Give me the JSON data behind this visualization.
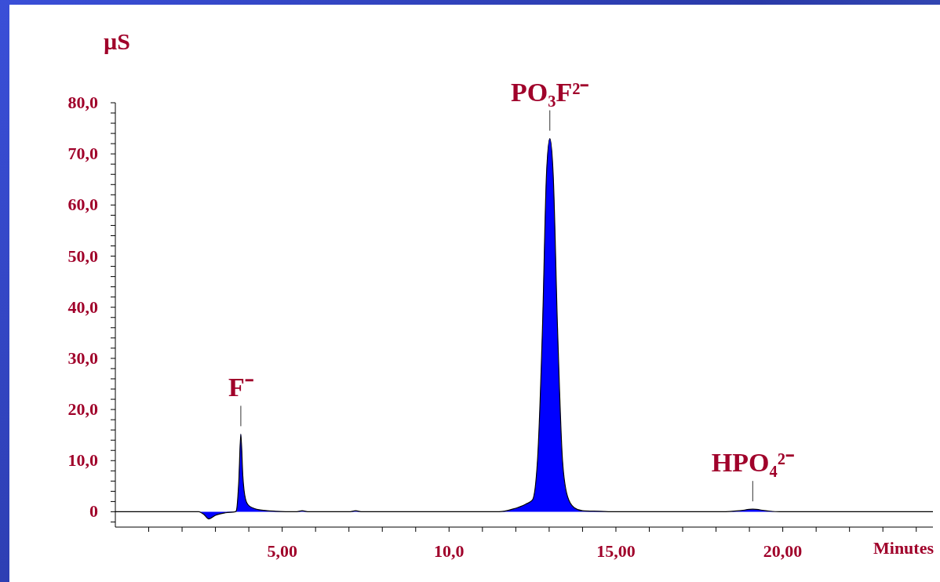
{
  "chart_data": {
    "type": "area",
    "xlabel": "Minutes",
    "ylabel": "µS",
    "x": [
      0,
      2.5,
      2.65,
      2.8,
      3.0,
      3.3,
      3.6,
      3.63,
      3.7,
      3.76,
      3.82,
      3.9,
      4.0,
      4.3,
      4.8,
      5.4,
      5.6,
      5.8,
      7.0,
      7.2,
      7.4,
      11.5,
      11.9,
      12.3,
      12.5,
      12.65,
      12.8,
      12.92,
      13.02,
      13.12,
      13.25,
      13.4,
      13.55,
      13.75,
      14.0,
      14.5,
      15.0,
      18.2,
      18.7,
      19.1,
      19.5,
      19.9,
      24.5
    ],
    "series": [
      {
        "color": "#0000ff",
        "values": [
          0,
          0,
          -0.5,
          -1.4,
          -0.7,
          -0.2,
          0,
          0.3,
          6,
          15.2,
          7,
          2.5,
          1.2,
          0.4,
          0.1,
          0,
          0.2,
          0,
          0,
          0.2,
          0,
          0,
          0.5,
          1.5,
          2.3,
          10,
          36,
          66,
          73,
          66,
          36,
          10,
          3,
          0.8,
          0.2,
          0.1,
          0,
          0,
          0.2,
          0.5,
          0.2,
          0,
          0
        ]
      }
    ],
    "xlim": [
      0,
      24.5
    ],
    "ylim": [
      -3,
      80
    ],
    "xticks": [
      {
        "value": 1,
        "label": null
      },
      {
        "value": 2,
        "label": null
      },
      {
        "value": 3,
        "label": null
      },
      {
        "value": 4,
        "label": null
      },
      {
        "value": 5,
        "label": "5,00"
      },
      {
        "value": 6,
        "label": null
      },
      {
        "value": 7,
        "label": null
      },
      {
        "value": 8,
        "label": null
      },
      {
        "value": 9,
        "label": null
      },
      {
        "value": 10,
        "label": "10,0"
      },
      {
        "value": 11,
        "label": null
      },
      {
        "value": 12,
        "label": null
      },
      {
        "value": 13,
        "label": null
      },
      {
        "value": 14,
        "label": null
      },
      {
        "value": 15,
        "label": "15,00"
      },
      {
        "value": 16,
        "label": null
      },
      {
        "value": 17,
        "label": null
      },
      {
        "value": 18,
        "label": null
      },
      {
        "value": 19,
        "label": null
      },
      {
        "value": 20,
        "label": "20,00"
      },
      {
        "value": 21,
        "label": null
      },
      {
        "value": 22,
        "label": null
      },
      {
        "value": 23,
        "label": null
      },
      {
        "value": 24,
        "label": null
      }
    ],
    "yticks": [
      {
        "value": -2,
        "label": null
      },
      0,
      {
        "value": 2,
        "label": null
      },
      {
        "value": 4,
        "label": null
      },
      {
        "value": 6,
        "label": null
      },
      {
        "value": 8,
        "label": null
      },
      {
        "value": 10,
        "label": "10,0"
      },
      {
        "value": 12,
        "label": null
      },
      {
        "value": 14,
        "label": null
      },
      {
        "value": 16,
        "label": null
      },
      {
        "value": 18,
        "label": null
      },
      {
        "value": 20,
        "label": "20,0"
      },
      {
        "value": 22,
        "label": null
      },
      {
        "value": 24,
        "label": null
      },
      {
        "value": 26,
        "label": null
      },
      {
        "value": 28,
        "label": null
      },
      {
        "value": 30,
        "label": "30,0"
      },
      {
        "value": 32,
        "label": null
      },
      {
        "value": 34,
        "label": null
      },
      {
        "value": 36,
        "label": null
      },
      {
        "value": 38,
        "label": null
      },
      {
        "value": 40,
        "label": "40,0"
      },
      {
        "value": 42,
        "label": null
      },
      {
        "value": 44,
        "label": null
      },
      {
        "value": 46,
        "label": null
      },
      {
        "value": 48,
        "label": null
      },
      {
        "value": 50,
        "label": "50,0"
      },
      {
        "value": 52,
        "label": null
      },
      {
        "value": 54,
        "label": null
      },
      {
        "value": 56,
        "label": null
      },
      {
        "value": 58,
        "label": null
      },
      {
        "value": 60,
        "label": "60,0"
      },
      {
        "value": 62,
        "label": null
      },
      {
        "value": 64,
        "label": null
      },
      {
        "value": 66,
        "label": null
      },
      {
        "value": 68,
        "label": null
      },
      {
        "value": 70,
        "label": "70,0"
      },
      {
        "value": 72,
        "label": null
      },
      {
        "value": 74,
        "label": null
      },
      {
        "value": 76,
        "label": null
      },
      {
        "value": 78,
        "label": null
      },
      {
        "value": 80,
        "label": "80,0"
      }
    ],
    "annotations": [
      {
        "text": "F⁻",
        "x": 3.76,
        "y": 15.2
      },
      {
        "text": "PO₃F²⁻",
        "x": 13.02,
        "y": 73
      },
      {
        "text": "HPO₄²⁻",
        "x": 19.1,
        "y": 0.5
      }
    ]
  }
}
